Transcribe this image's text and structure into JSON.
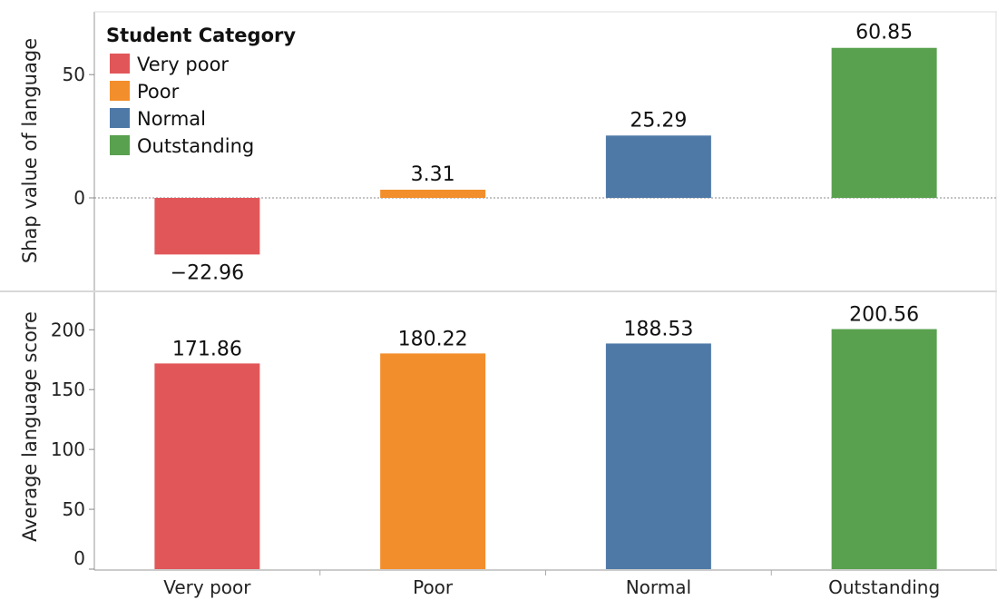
{
  "chart_data": [
    {
      "type": "bar",
      "categories": [
        "Very poor",
        "Poor",
        "Normal",
        "Outstanding"
      ],
      "values": [
        -22.96,
        3.31,
        25.29,
        60.85
      ],
      "value_labels": [
        "−22.96",
        "3.31",
        "25.29",
        "60.85"
      ],
      "ylabel": "Shap value of language",
      "yticks": [
        0,
        50
      ],
      "ylim": [
        -30,
        75
      ],
      "zero_line": "dotted",
      "legend": {
        "title": "Student Category",
        "placement": "top-left",
        "items": [
          "Very poor",
          "Poor",
          "Normal",
          "Outstanding"
        ]
      }
    },
    {
      "type": "bar",
      "categories": [
        "Very poor",
        "Poor",
        "Normal",
        "Outstanding"
      ],
      "values": [
        171.86,
        180.22,
        188.53,
        200.56
      ],
      "value_labels": [
        "171.86",
        "180.22",
        "188.53",
        "200.56"
      ],
      "ylabel": "Average language score",
      "yticks": [
        0,
        50,
        100,
        150,
        200
      ],
      "ylim": [
        0,
        230
      ],
      "xticks": [
        "Very poor",
        "Poor",
        "Normal",
        "Outstanding"
      ]
    }
  ],
  "colors": {
    "Very poor": "#e15759",
    "Poor": "#f28e2b",
    "Normal": "#4e79a7",
    "Outstanding": "#59a14f"
  }
}
